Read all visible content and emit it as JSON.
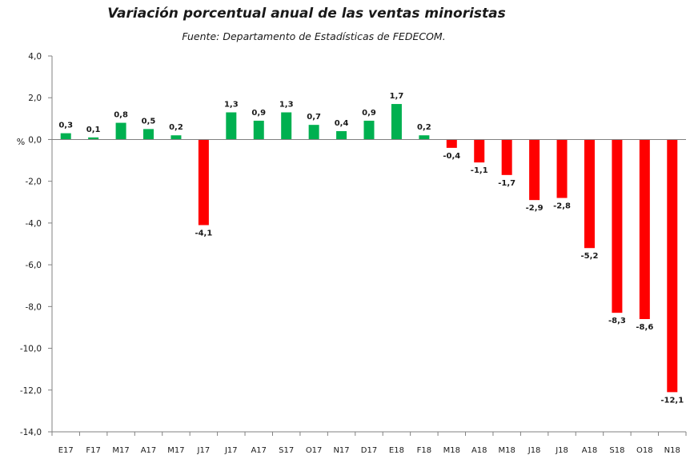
{
  "chart_data": {
    "type": "bar",
    "title": "Variación porcentual anual de las ventas minoristas",
    "subtitle": "Fuente: Departamento de Estadísticas de FEDECOM.",
    "ylabel": "%",
    "xlabel": "",
    "ylim": [
      -14.0,
      4.0
    ],
    "yticks": [
      "4,0",
      "2,0",
      "0,0",
      "-2,0",
      "-4,0",
      "-6,0",
      "-8,0",
      "-10,0",
      "-12,0",
      "-14,0"
    ],
    "ytick_values": [
      4,
      2,
      0,
      -2,
      -4,
      -6,
      -8,
      -10,
      -12,
      -14
    ],
    "grid": false,
    "legend": "none",
    "categories": [
      "E17",
      "F17",
      "M17",
      "A17",
      "M17",
      "J17",
      "J17",
      "A17",
      "S17",
      "O17",
      "N17",
      "D17",
      "E18",
      "F18",
      "M18",
      "A18",
      "M18",
      "J18",
      "J18",
      "A18",
      "S18",
      "O18",
      "N18"
    ],
    "values": [
      0.3,
      0.1,
      0.8,
      0.5,
      0.2,
      -4.1,
      1.3,
      0.9,
      1.3,
      0.7,
      0.4,
      0.9,
      1.7,
      0.2,
      -0.4,
      -1.1,
      -1.7,
      -2.9,
      -2.8,
      -5.2,
      -8.3,
      -8.6,
      -12.1
    ],
    "data_labels": [
      "0,3",
      "0,1",
      "0,8",
      "0,5",
      "0,2",
      "-4,1",
      "1,3",
      "0,9",
      "1,3",
      "0,7",
      "0,4",
      "0,9",
      "1,7",
      "0,2",
      "-0,4",
      "-1,1",
      "-1,7",
      "-2,9",
      "-2,8",
      "-5,2",
      "-8,3",
      "-8,6",
      "-12,1"
    ],
    "colors": {
      "positive": "#00b050",
      "negative": "#ff0000",
      "axis": "#808080"
    }
  }
}
